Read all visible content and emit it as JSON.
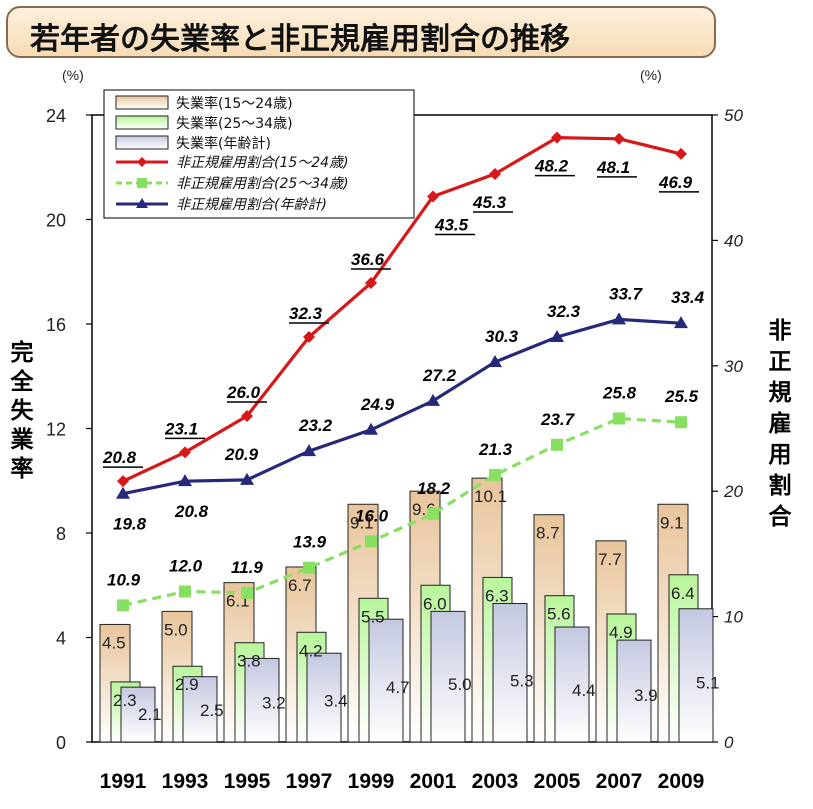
{
  "title": "若年者の失業率と非正規雇用割合の推移",
  "chart_data": {
    "type": "bar",
    "categories": [
      "1991",
      "1993",
      "1995",
      "1997",
      "1999",
      "2001",
      "2003",
      "2005",
      "2007",
      "2009"
    ],
    "left_axis": {
      "title": "完全失業率",
      "unit": "(%)",
      "range": [
        0,
        24
      ],
      "ticks": [
        0,
        4,
        8,
        12,
        16,
        20,
        24
      ]
    },
    "right_axis": {
      "title": "非正規雇用割合",
      "unit": "(%)",
      "range": [
        0,
        50
      ],
      "ticks": [
        0,
        10,
        20,
        30,
        40,
        50
      ]
    },
    "legend_position": "top-left",
    "bar_series": [
      {
        "name": "失業率(15～24歳)",
        "values": [
          4.5,
          5.0,
          6.1,
          6.7,
          9.1,
          9.6,
          10.1,
          8.7,
          7.7,
          9.1
        ],
        "color": "#e8c49a"
      },
      {
        "name": "失業率(25～34歳)",
        "values": [
          2.3,
          2.9,
          3.8,
          4.2,
          5.5,
          6.0,
          6.3,
          5.6,
          4.9,
          6.4
        ],
        "color": "#b8f59a"
      },
      {
        "name": "失業率(年齢計)",
        "values": [
          2.1,
          2.5,
          3.2,
          3.4,
          4.7,
          5.0,
          5.3,
          4.4,
          3.9,
          5.1
        ],
        "color": "#c4c8e0"
      }
    ],
    "line_series": [
      {
        "name": "非正規雇用割合(15～24歳)",
        "values": [
          20.8,
          23.1,
          26.0,
          32.3,
          36.6,
          43.5,
          45.3,
          48.2,
          48.1,
          46.9
        ],
        "color": "#d81818",
        "style": "solid",
        "marker": "diamond"
      },
      {
        "name": "非正規雇用割合(25～34歳)",
        "values": [
          10.9,
          12.0,
          11.9,
          13.9,
          16.0,
          18.2,
          21.3,
          23.7,
          25.8,
          25.5
        ],
        "color": "#88e060",
        "style": "dashed",
        "marker": "square"
      },
      {
        "name": "非正規雇用割合(年齢計)",
        "values": [
          19.8,
          20.8,
          20.9,
          23.2,
          24.9,
          27.2,
          30.3,
          32.3,
          33.7,
          33.4
        ],
        "color": "#28287a",
        "style": "solid",
        "marker": "triangle"
      }
    ]
  }
}
